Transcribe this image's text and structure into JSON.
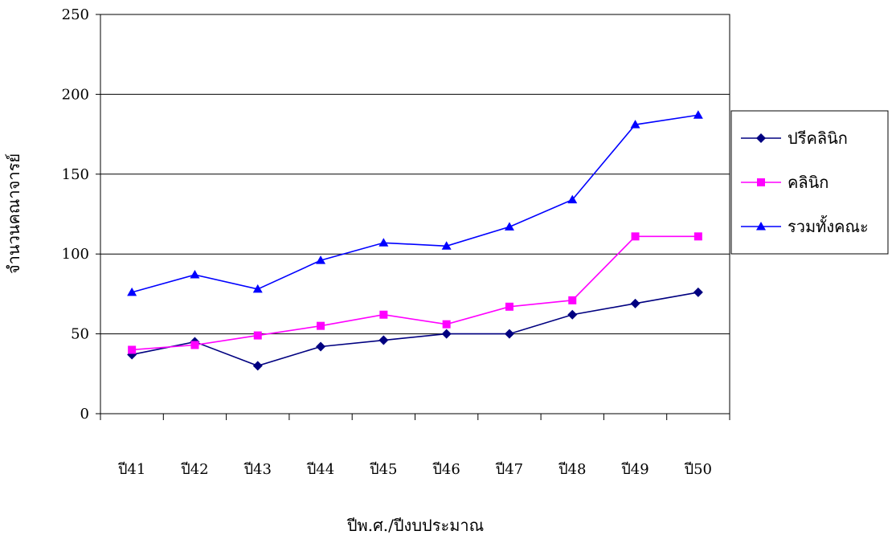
{
  "chart_data": {
    "type": "line",
    "title": "",
    "xlabel": "ปีพ.ศ./ปีงบประมาณ",
    "ylabel": "จำนวนคณาจารย์",
    "categories": [
      "ปี41",
      "ปี42",
      "ปี43",
      "ปี44",
      "ปี45",
      "ปี46",
      "ปี47",
      "ปี48",
      "ปี49",
      "ปี50"
    ],
    "ylim": [
      0,
      250
    ],
    "yticks": [
      0,
      50,
      100,
      150,
      200,
      250
    ],
    "grid": "horizontal",
    "legend_position": "right",
    "series": [
      {
        "name": "ปรีคลินิก",
        "color": "#000080",
        "marker": "diamond",
        "values": [
          37,
          45,
          30,
          42,
          46,
          50,
          50,
          62,
          69,
          76
        ]
      },
      {
        "name": "คลินิก",
        "color": "#ff00ff",
        "marker": "square",
        "values": [
          40,
          43,
          49,
          55,
          62,
          56,
          67,
          71,
          111,
          111
        ]
      },
      {
        "name": "รวมทั้งคณะ",
        "color": "#0000ff",
        "marker": "triangle",
        "values": [
          76,
          87,
          78,
          96,
          107,
          105,
          117,
          134,
          181,
          187
        ]
      }
    ]
  }
}
